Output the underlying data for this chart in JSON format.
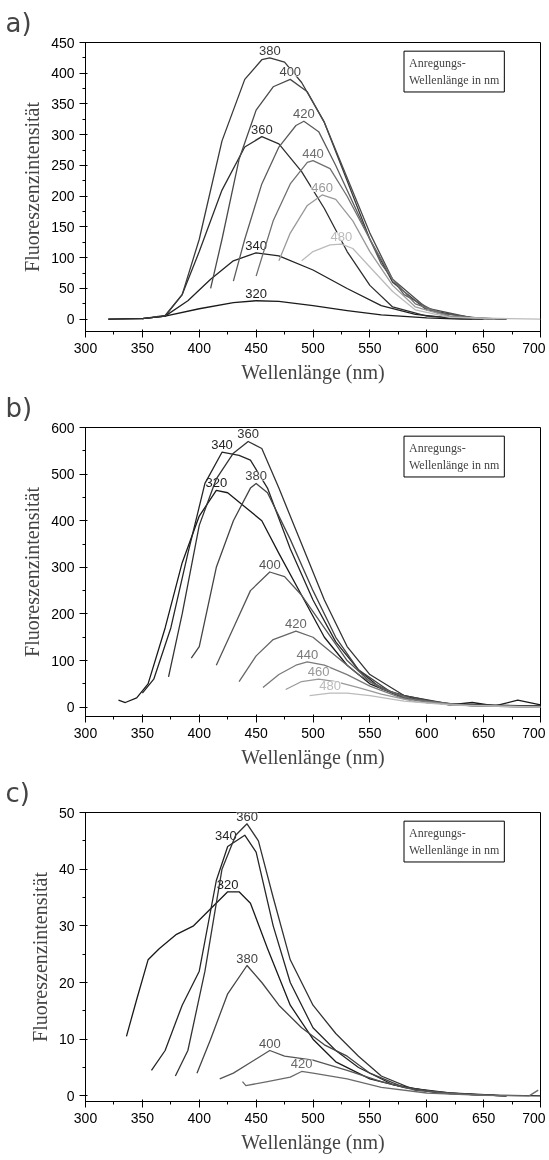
{
  "chart_data": [
    {
      "type": "line",
      "title": "a)",
      "xlabel": "Wellenlänge (nm)",
      "ylabel": "Fluoreszenzintensität",
      "xlim": [
        300,
        700
      ],
      "ylim": [
        -20,
        450
      ],
      "xticks": [
        300,
        350,
        400,
        450,
        500,
        550,
        600,
        650,
        700
      ],
      "yticks": [
        0,
        50,
        100,
        150,
        200,
        250,
        300,
        350,
        400,
        450
      ],
      "grid": false,
      "legend": false,
      "annotations": [
        "Anregungs-\nWellenlänge in nm"
      ],
      "series": [
        {
          "name": "320",
          "color": "#1a1a1a",
          "x": [
            320,
            350,
            370,
            400,
            430,
            450,
            470,
            500,
            530,
            560,
            600,
            630,
            650
          ],
          "values": [
            0,
            1,
            5,
            17,
            27,
            30,
            29,
            22,
            14,
            7,
            2,
            0,
            0
          ]
        },
        {
          "name": "340",
          "color": "#222222",
          "x": [
            320,
            350,
            370,
            390,
            410,
            430,
            450,
            470,
            500,
            530,
            560,
            590,
            620,
            660
          ],
          "values": [
            0,
            1,
            5,
            30,
            65,
            95,
            108,
            103,
            80,
            50,
            22,
            8,
            2,
            0
          ]
        },
        {
          "name": "360",
          "color": "#2e2e2e",
          "x": [
            350,
            370,
            385,
            400,
            420,
            440,
            455,
            470,
            490,
            510,
            530,
            550,
            570,
            600,
            640
          ],
          "values": [
            1,
            5,
            40,
            110,
            210,
            280,
            297,
            285,
            240,
            180,
            110,
            55,
            20,
            5,
            0
          ]
        },
        {
          "name": "380",
          "color": "#3a3a3a",
          "x": [
            350,
            370,
            385,
            400,
            420,
            440,
            455,
            462,
            475,
            490,
            510,
            530,
            550,
            570,
            600,
            640,
            670
          ],
          "values": [
            1,
            6,
            40,
            130,
            290,
            390,
            422,
            425,
            418,
            385,
            320,
            225,
            130,
            60,
            15,
            2,
            0
          ]
        },
        {
          "name": "400",
          "color": "#4a4a4a",
          "x": [
            410,
            420,
            435,
            450,
            465,
            480,
            495,
            510,
            530,
            550,
            570,
            600,
            640,
            670
          ],
          "values": [
            50,
            130,
            260,
            340,
            378,
            390,
            370,
            320,
            230,
            140,
            65,
            18,
            2,
            0
          ]
        },
        {
          "name": "420",
          "color": "#5c5c5c",
          "x": [
            430,
            440,
            455,
            470,
            485,
            492,
            505,
            520,
            540,
            560,
            580,
            610,
            650,
            670
          ],
          "values": [
            62,
            130,
            220,
            280,
            315,
            322,
            305,
            250,
            170,
            90,
            40,
            10,
            1,
            0
          ]
        },
        {
          "name": "440",
          "color": "#707070",
          "x": [
            450,
            465,
            480,
            495,
            500,
            515,
            530,
            550,
            570,
            590,
            620,
            660
          ],
          "values": [
            70,
            160,
            220,
            255,
            258,
            245,
            200,
            130,
            65,
            25,
            5,
            0
          ]
        },
        {
          "name": "460",
          "color": "#999999",
          "x": [
            470,
            480,
            495,
            508,
            520,
            535,
            550,
            570,
            590,
            620,
            660
          ],
          "values": [
            95,
            140,
            185,
            202,
            195,
            160,
            110,
            55,
            20,
            4,
            0
          ]
        },
        {
          "name": "480",
          "color": "#bbbbbb",
          "x": [
            490,
            500,
            515,
            525,
            535,
            550,
            570,
            590,
            620,
            700
          ],
          "values": [
            95,
            110,
            121,
            122,
            115,
            85,
            45,
            15,
            3,
            0
          ]
        }
      ]
    },
    {
      "type": "line",
      "title": "b)",
      "xlabel": "Wellenlänge (nm)",
      "ylabel": "Fluoreszenzintensität",
      "xlim": [
        300,
        700
      ],
      "ylim": [
        -20,
        600
      ],
      "xticks": [
        300,
        350,
        400,
        450,
        500,
        550,
        600,
        650,
        700
      ],
      "yticks": [
        0,
        100,
        200,
        300,
        400,
        500,
        600
      ],
      "grid": false,
      "legend": false,
      "annotations": [
        "Anregungs-\nWellenlänge in nm"
      ],
      "series": [
        {
          "name": "320",
          "color": "#1a1a1a",
          "x": [
            329,
            335,
            345,
            355,
            370,
            385,
            400,
            415,
            425,
            440,
            455,
            470,
            490,
            510,
            530,
            550,
            580,
            620,
            640,
            660,
            680,
            700
          ],
          "values": [
            15,
            10,
            20,
            50,
            170,
            310,
            410,
            465,
            460,
            430,
            400,
            330,
            240,
            150,
            90,
            50,
            20,
            5,
            10,
            3,
            15,
            5
          ]
        },
        {
          "name": "340",
          "color": "#262626",
          "x": [
            350,
            360,
            375,
            390,
            405,
            420,
            435,
            445,
            460,
            480,
            500,
            520,
            540,
            560,
            600,
            650,
            700
          ],
          "values": [
            30,
            60,
            170,
            330,
            480,
            547,
            540,
            530,
            470,
            340,
            230,
            140,
            80,
            40,
            10,
            3,
            3
          ]
        },
        {
          "name": "360",
          "color": "#333333",
          "x": [
            373,
            385,
            400,
            415,
            430,
            443,
            455,
            470,
            490,
            510,
            530,
            550,
            580,
            620,
            700
          ],
          "values": [
            65,
            200,
            390,
            490,
            545,
            570,
            555,
            470,
            350,
            230,
            130,
            70,
            25,
            7,
            2
          ]
        },
        {
          "name": "380",
          "color": "#444444",
          "x": [
            393,
            400,
            415,
            430,
            445,
            450,
            460,
            480,
            500,
            520,
            540,
            570,
            620,
            700
          ],
          "values": [
            105,
            130,
            300,
            400,
            470,
            480,
            460,
            360,
            250,
            150,
            80,
            30,
            5,
            2
          ]
        },
        {
          "name": "400",
          "color": "#555555",
          "x": [
            415,
            430,
            445,
            462,
            475,
            490,
            510,
            530,
            550,
            580,
            630,
            700
          ],
          "values": [
            90,
            170,
            250,
            290,
            280,
            240,
            170,
            100,
            55,
            20,
            5,
            1
          ]
        },
        {
          "name": "420",
          "color": "#666666",
          "x": [
            435,
            450,
            465,
            485,
            500,
            520,
            540,
            560,
            590,
            640,
            700
          ],
          "values": [
            55,
            110,
            145,
            163,
            150,
            110,
            70,
            40,
            15,
            3,
            0
          ]
        },
        {
          "name": "440",
          "color": "#7a7a7a",
          "x": [
            456,
            470,
            485,
            495,
            510,
            530,
            550,
            580,
            630,
            700
          ],
          "values": [
            42,
            70,
            90,
            97,
            90,
            70,
            45,
            18,
            4,
            0
          ]
        },
        {
          "name": "460",
          "color": "#999999",
          "x": [
            476,
            490,
            505,
            520,
            540,
            560,
            590,
            640,
            700
          ],
          "values": [
            38,
            55,
            60,
            55,
            42,
            28,
            12,
            3,
            0
          ]
        },
        {
          "name": "480",
          "color": "#bbbbbb",
          "x": [
            497,
            515,
            530,
            550,
            580,
            620,
            700
          ],
          "values": [
            25,
            30,
            30,
            25,
            13,
            5,
            0
          ]
        }
      ]
    },
    {
      "type": "line",
      "title": "c)",
      "xlabel": "Wellenlänge (nm)",
      "ylabel": "Fluoreszenzintensität",
      "xlim": [
        300,
        700
      ],
      "ylim": [
        -1,
        50
      ],
      "xticks": [
        300,
        350,
        400,
        450,
        500,
        550,
        600,
        650,
        700
      ],
      "yticks": [
        0,
        10,
        20,
        30,
        40,
        50
      ],
      "grid": false,
      "legend": false,
      "annotations": [
        "Anregungs-\nWellenlänge in nm"
      ],
      "series": [
        {
          "name": "320",
          "color": "#1a1a1a",
          "x": [
            336,
            345,
            355,
            365,
            380,
            395,
            410,
            425,
            435,
            445,
            460,
            480,
            500,
            520,
            550,
            580,
            620,
            660,
            700
          ],
          "values": [
            10.5,
            17,
            24,
            26,
            28.5,
            30,
            33,
            36,
            36,
            34,
            26,
            16,
            10,
            6,
            3,
            1.5,
            0.5,
            0.1,
            0
          ]
        },
        {
          "name": "340",
          "color": "#262626",
          "x": [
            358,
            370,
            385,
            400,
            415,
            425,
            440,
            450,
            465,
            480,
            500,
            520,
            540,
            570,
            610,
            670
          ],
          "values": [
            4.5,
            8,
            16,
            22,
            38,
            44,
            46,
            43,
            30,
            20,
            12,
            8,
            5,
            2,
            0.5,
            0
          ]
        },
        {
          "name": "360",
          "color": "#333333",
          "x": [
            379,
            390,
            405,
            420,
            432,
            442,
            452,
            465,
            480,
            500,
            520,
            540,
            560,
            590,
            640,
            670
          ],
          "values": [
            3.5,
            8,
            22,
            40,
            46,
            48,
            45,
            35,
            24,
            16,
            11,
            7,
            3.5,
            1,
            0.2,
            0
          ]
        },
        {
          "name": "380",
          "color": "#444444",
          "x": [
            398,
            410,
            425,
            442,
            455,
            470,
            490,
            510,
            530,
            550,
            580,
            620,
            670
          ],
          "values": [
            4,
            10,
            18,
            23,
            20,
            16,
            12,
            9,
            7,
            4,
            1.5,
            0.4,
            0
          ]
        },
        {
          "name": "400",
          "color": "#555555",
          "x": [
            418,
            430,
            450,
            462,
            475,
            500,
            530,
            560,
            590,
            630,
            670
          ],
          "values": [
            3,
            4,
            6.5,
            8,
            7,
            6.3,
            4.5,
            2.5,
            1,
            0.3,
            0
          ]
        },
        {
          "name": "420",
          "color": "#6a6a6a",
          "x": [
            438,
            441,
            460,
            480,
            490,
            500,
            530,
            560,
            600,
            650,
            690,
            698
          ],
          "values": [
            2.5,
            1.8,
            2.5,
            3.3,
            4.3,
            4,
            3,
            1.5,
            0.5,
            0.1,
            0,
            1
          ]
        }
      ]
    }
  ]
}
